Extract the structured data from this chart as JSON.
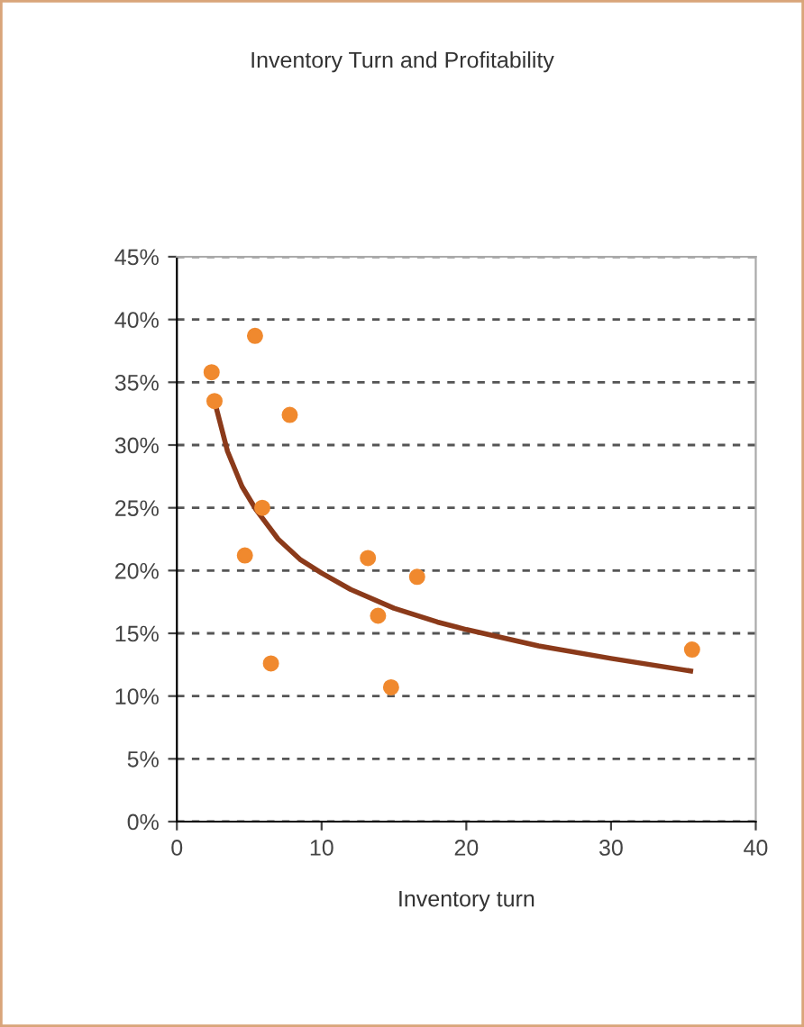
{
  "chart_data": {
    "type": "scatter",
    "title": "Inventory Turn and Profitability",
    "xlabel": "Inventory turn",
    "series": [
      {
        "marker": "circle",
        "color": "#f0892e",
        "x": [
          2.4,
          2.6,
          5.4,
          7.8,
          5.9,
          4.7,
          6.5,
          13.2,
          13.9,
          16.6,
          14.8,
          35.6
        ],
        "values": [
          35.8,
          33.5,
          38.7,
          32.4,
          25,
          21.2,
          12.6,
          21,
          16.4,
          19.5,
          10.7,
          13.7
        ]
      },
      {
        "type": "line",
        "color": "#8b3a1a",
        "x": [
          2.6,
          3.5,
          4.5,
          5.5,
          7,
          8.5,
          10,
          12,
          15,
          18,
          20,
          25,
          30,
          35.5
        ],
        "values": [
          33.5,
          29.5,
          26.7,
          24.8,
          22.5,
          20.9,
          19.8,
          18.5,
          17,
          15.9,
          15.3,
          14,
          13,
          12
        ]
      }
    ],
    "xlim": [
      0,
      40
    ],
    "xticks": [
      0,
      10,
      20,
      30,
      40
    ],
    "ylim": [
      0,
      45
    ],
    "yticks": [
      {
        "value": 0,
        "label": "0%"
      },
      {
        "value": 5,
        "label": "5%"
      },
      {
        "value": 10,
        "label": "10%"
      },
      {
        "value": 15,
        "label": "15%"
      },
      {
        "value": 20,
        "label": "20%"
      },
      {
        "value": 25,
        "label": "25%"
      },
      {
        "value": 30,
        "label": "30%"
      },
      {
        "value": 35,
        "label": "35%"
      },
      {
        "value": 40,
        "label": "40%"
      },
      {
        "value": 45,
        "label": "45%"
      }
    ],
    "grid": "y",
    "line_style": "solid"
  }
}
